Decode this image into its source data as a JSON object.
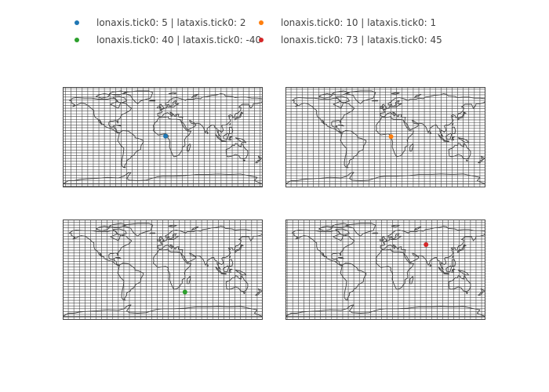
{
  "legend": [
    {
      "label": "lonaxis.tick0: 5 | lataxis.tick0: 2",
      "color": "#1f77b4"
    },
    {
      "label": "lonaxis.tick0: 10 | lataxis.tick0: 1",
      "color": "#ff7f0e"
    },
    {
      "label": "lonaxis.tick0: 40 | lataxis.tick0: -40",
      "color": "#2ca02c"
    },
    {
      "label": "lonaxis.tick0: 73 | lataxis.tick0: 45",
      "color": "#d62728"
    }
  ],
  "chart_data": {
    "type": "scattergeo",
    "projection": "equirectangular",
    "lonaxis_range": [
      -180,
      180
    ],
    "lataxis_range": [
      -90,
      90
    ],
    "lonaxis_dtick": 10,
    "lataxis_dtick": 5,
    "showgrid": true,
    "showcountries": false,
    "land_color": "none",
    "coastline_color": "#444444",
    "grid_color": "#444444",
    "subplots": [
      {
        "name": "lonaxis.tick0: 5 | lataxis.tick0: 2",
        "lon_tick0": 5,
        "lat_tick0": 2,
        "point": {
          "lon": 5,
          "lat": 2
        },
        "color": "#1f77b4"
      },
      {
        "name": "lonaxis.tick0: 10 | lataxis.tick0: 1",
        "lon_tick0": 10,
        "lat_tick0": 1,
        "point": {
          "lon": 10,
          "lat": 1
        },
        "color": "#ff7f0e"
      },
      {
        "name": "lonaxis.tick0: 40 | lataxis.tick0: -40",
        "lon_tick0": 40,
        "lat_tick0": -40,
        "point": {
          "lon": 40,
          "lat": -40
        },
        "color": "#2ca02c"
      },
      {
        "name": "lonaxis.tick0: 73 | lataxis.tick0: 45",
        "lon_tick0": 73,
        "lat_tick0": 45,
        "point": {
          "lon": 73,
          "lat": 45
        },
        "color": "#d62728"
      }
    ]
  }
}
